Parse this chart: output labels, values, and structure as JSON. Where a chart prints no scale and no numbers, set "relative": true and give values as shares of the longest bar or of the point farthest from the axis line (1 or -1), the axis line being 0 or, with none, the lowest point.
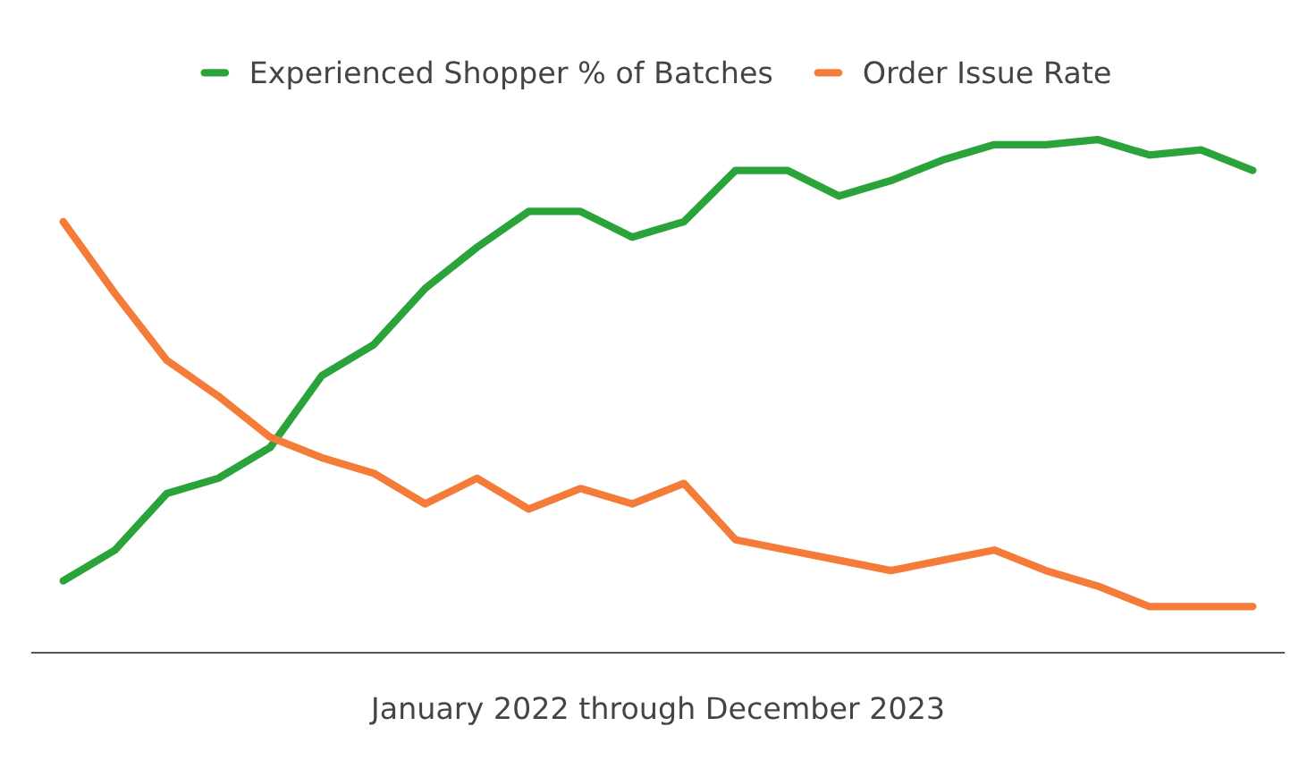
{
  "chart_data": {
    "type": "line",
    "relative": true,
    "xlabel": "January 2022 through December 2023",
    "categories": [
      null,
      null,
      null,
      null,
      null,
      null,
      null,
      null,
      null,
      null,
      null,
      null,
      null,
      null,
      null,
      null,
      null,
      null,
      null,
      null,
      null,
      null,
      null,
      null
    ],
    "series": [
      {
        "name": "Experienced Shopper % of Batches",
        "color": "#2aa33a",
        "values": [
          0.14,
          0.2,
          0.31,
          0.34,
          0.4,
          0.54,
          0.6,
          0.71,
          0.79,
          0.86,
          0.86,
          0.81,
          0.84,
          0.94,
          0.94,
          0.89,
          0.92,
          0.96,
          0.99,
          0.99,
          1.0,
          0.97,
          0.98,
          0.94
        ]
      },
      {
        "name": "Order Issue Rate",
        "color": "#f47c38",
        "values": [
          0.84,
          0.7,
          0.57,
          0.5,
          0.42,
          0.38,
          0.35,
          0.29,
          0.34,
          0.28,
          0.32,
          0.29,
          0.33,
          0.22,
          0.2,
          0.18,
          0.16,
          0.18,
          0.2,
          0.16,
          0.13,
          0.09,
          0.09,
          0.09
        ]
      }
    ],
    "legend": "top",
    "grid": false,
    "marker": "none",
    "line_style": "solid"
  }
}
